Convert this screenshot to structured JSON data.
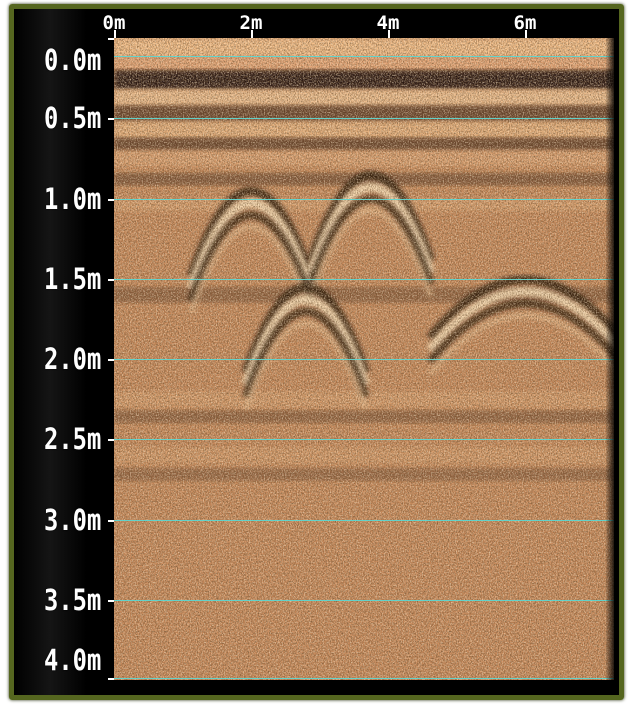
{
  "x_axis": {
    "ticks": [
      {
        "label": "0m",
        "value": 0
      },
      {
        "label": "2m",
        "value": 2
      },
      {
        "label": "4m",
        "value": 4
      },
      {
        "label": "6m",
        "value": 6
      }
    ],
    "range": [
      0,
      7.3
    ]
  },
  "y_axis": {
    "ticks": [
      {
        "label": "0.0m",
        "value": 0.0
      },
      {
        "label": "0.5m",
        "value": 0.5
      },
      {
        "label": "1.0m",
        "value": 1.0
      },
      {
        "label": "1.5m",
        "value": 1.5
      },
      {
        "label": "2.0m",
        "value": 2.0
      },
      {
        "label": "2.5m",
        "value": 2.5
      },
      {
        "label": "3.0m",
        "value": 3.0
      },
      {
        "label": "3.5m",
        "value": 3.5
      },
      {
        "label": "4.0m",
        "value": 4.0
      }
    ],
    "range": [
      0,
      4.0
    ]
  },
  "colors": {
    "frame": "#55661f",
    "gridline": "#5fd6cf",
    "soil_light": "#f2c08e",
    "soil_mid": "#c8895a",
    "soil_dark": "#2a160c"
  },
  "hyperbolas": [
    {
      "apex_x": 2.0,
      "apex_depth": 0.85
    },
    {
      "apex_x": 3.75,
      "apex_depth": 0.75
    },
    {
      "apex_x": 2.8,
      "apex_depth": 1.45
    },
    {
      "apex_x": 6.0,
      "apex_depth": 1.45
    }
  ]
}
